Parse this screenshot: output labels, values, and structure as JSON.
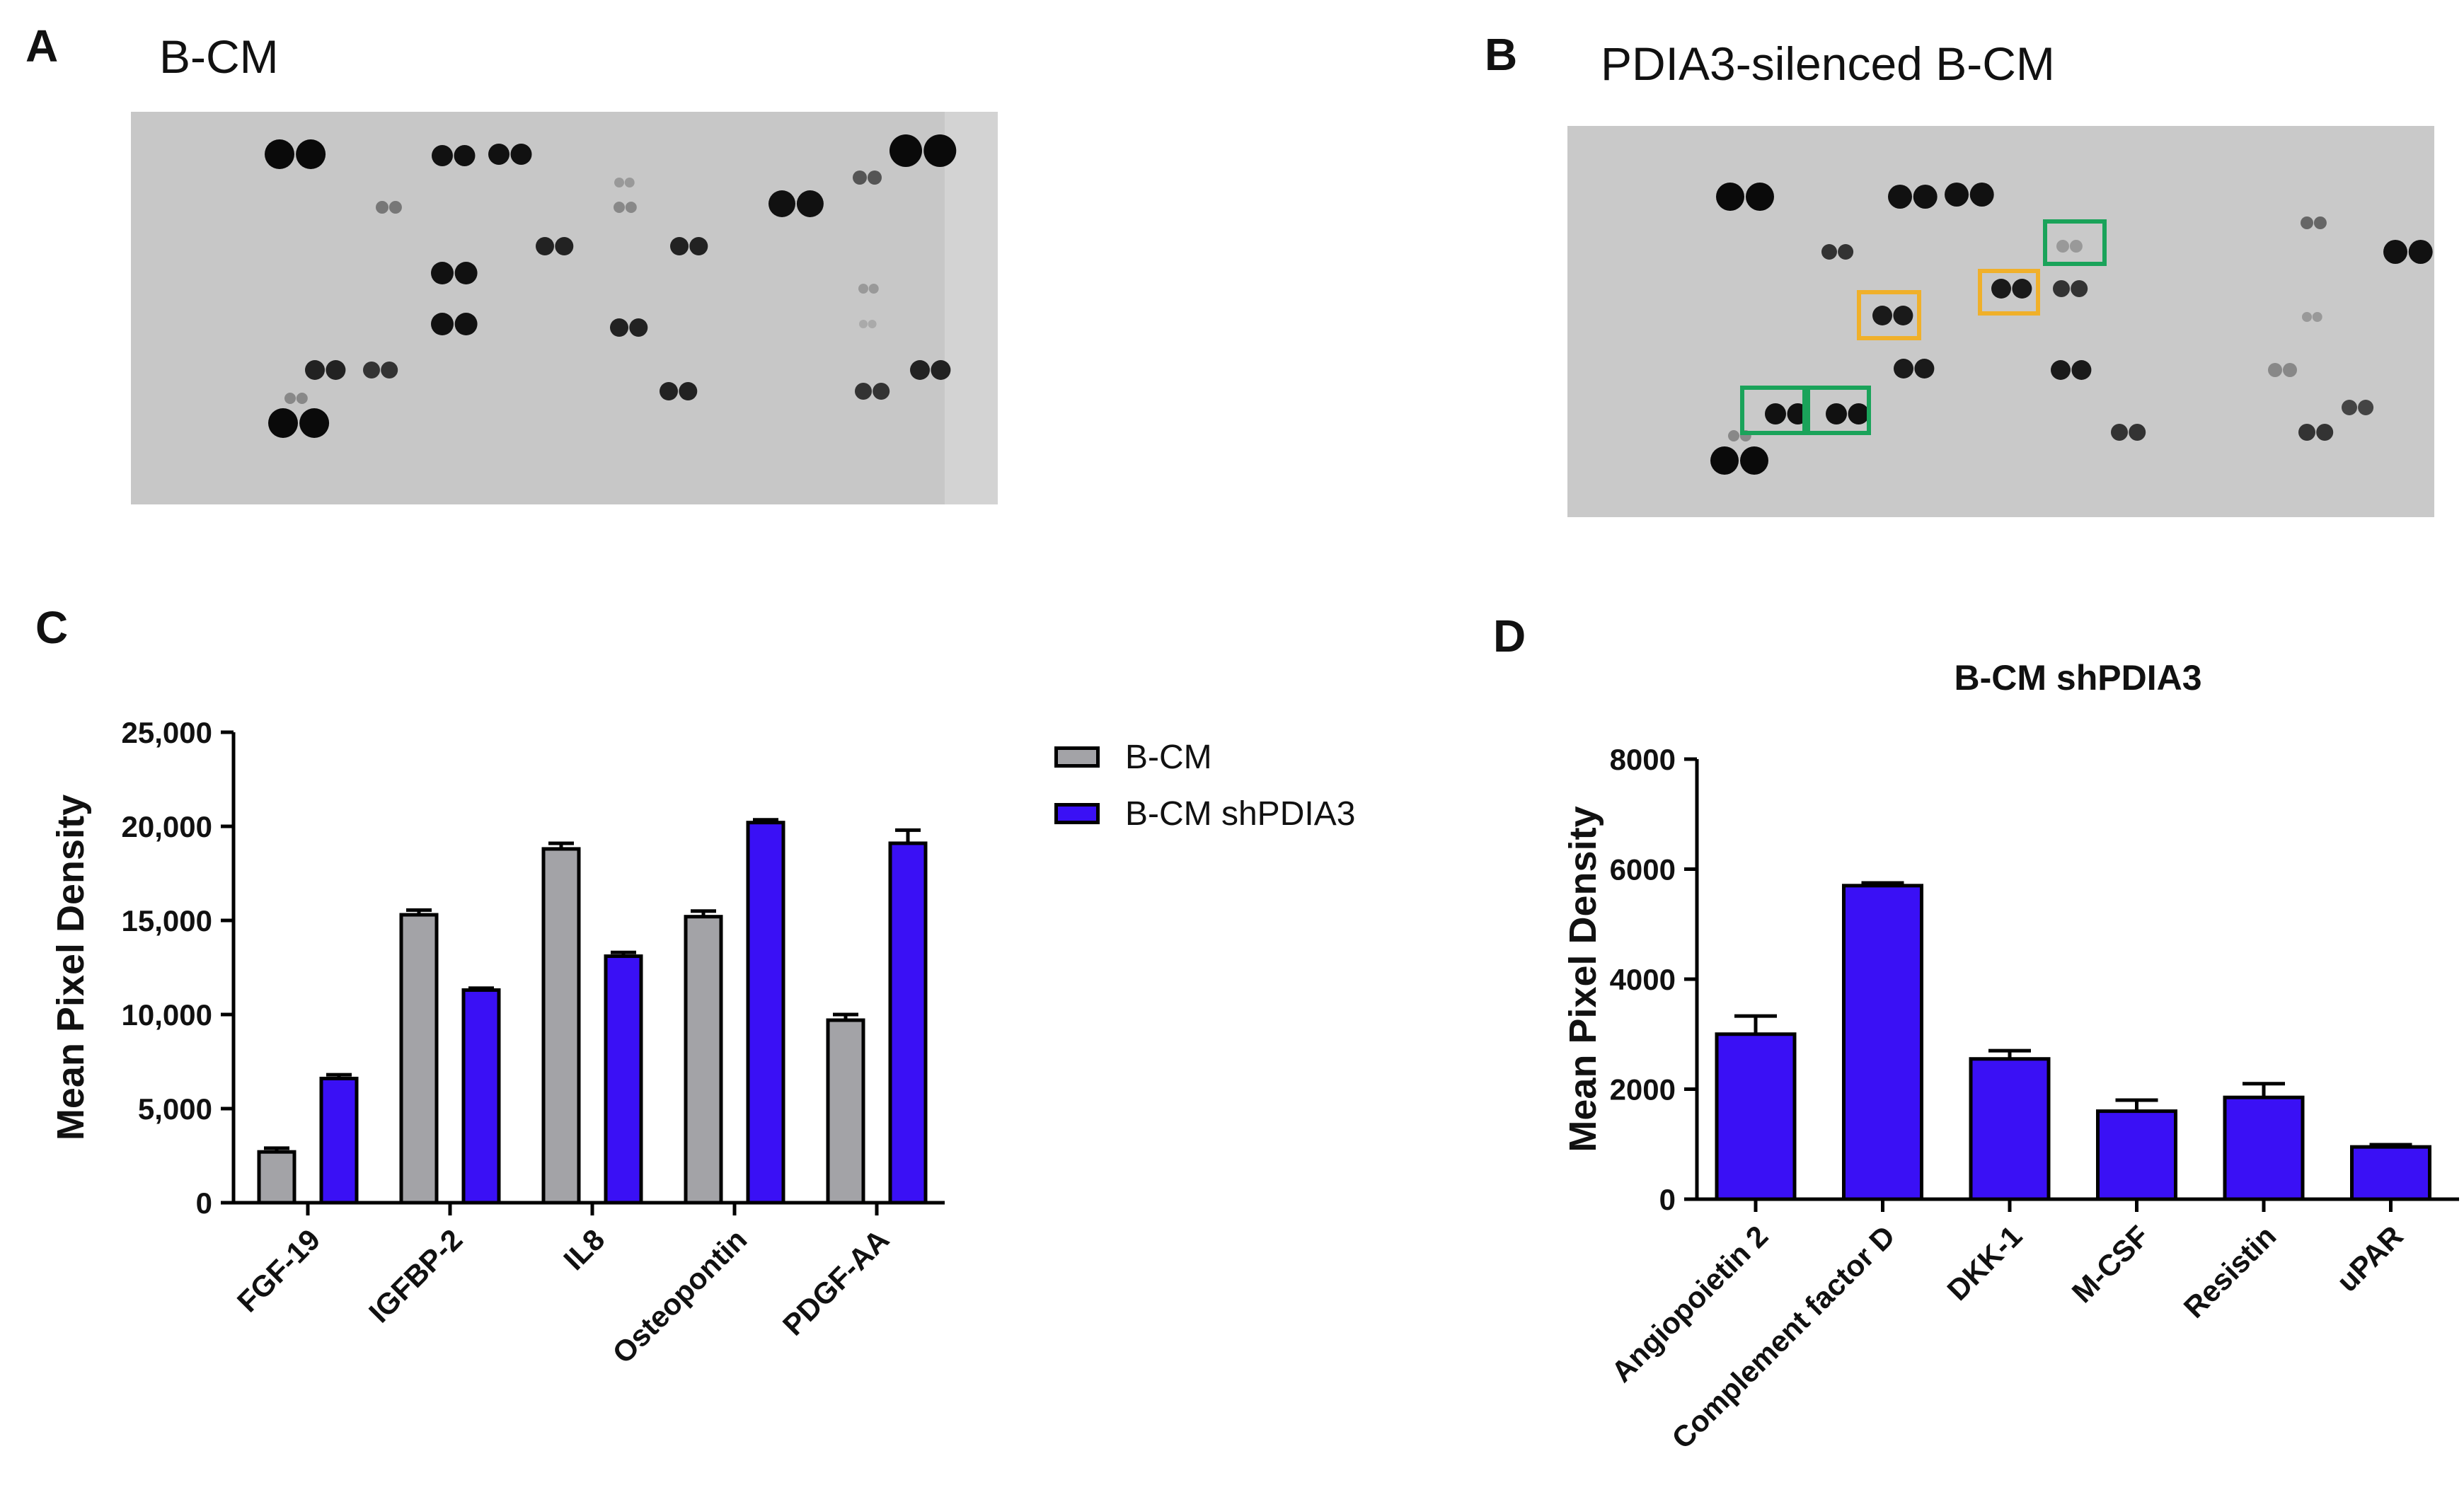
{
  "panels": {
    "a": {
      "letter": "A",
      "title": "B-CM"
    },
    "b": {
      "letter": "B",
      "title": "PDIA3-silenced B-CM"
    },
    "c": {
      "letter": "C"
    },
    "d": {
      "letter": "D"
    }
  },
  "colors": {
    "bcm": "#a3a3a7",
    "shpdia3": "#3a10f5",
    "highlight_green": "#1aa35a",
    "highlight_orange": "#f0b02a",
    "membrane": "#c9c9c9"
  },
  "legend": {
    "bcm": "B-CM",
    "shpdia3": "B-CM shPDIA3"
  },
  "chart_data": [
    {
      "type": "bar",
      "title": "",
      "xlabel": "",
      "ylabel": "Mean Pixel Density",
      "ylim": [
        0,
        25000
      ],
      "yticks": [
        0,
        5000,
        10000,
        15000,
        20000,
        25000
      ],
      "ytick_labels": [
        "0",
        "5,000",
        "10,000",
        "15,000",
        "20,000",
        "25,000"
      ],
      "categories": [
        "FGF-19",
        "IGFBP-2",
        "IL8",
        "Osteopontin",
        "PDGF-AA"
      ],
      "series": [
        {
          "name": "B-CM",
          "values": [
            2700,
            15300,
            18800,
            15200,
            9700
          ],
          "errors": [
            200,
            250,
            300,
            300,
            300
          ]
        },
        {
          "name": "B-CM shPDIA3",
          "values": [
            6600,
            11300,
            13100,
            20200,
            19100
          ],
          "errors": [
            200,
            100,
            200,
            150,
            700
          ]
        }
      ],
      "legend_position": "right"
    },
    {
      "type": "bar",
      "title": "B-CM shPDIA3",
      "xlabel": "",
      "ylabel": "Mean Pixel Density",
      "ylim": [
        0,
        8000
      ],
      "yticks": [
        0,
        2000,
        4000,
        6000,
        8000
      ],
      "ytick_labels": [
        "0",
        "2000",
        "4000",
        "6000",
        "8000"
      ],
      "categories": [
        "Angiopoietin 2",
        "Complement factor D",
        "DKK-1",
        "M-CSF",
        "Resistin",
        "uPAR"
      ],
      "series": [
        {
          "name": "B-CM shPDIA3",
          "values": [
            3000,
            5700,
            2550,
            1600,
            1850,
            950
          ],
          "errors": [
            330,
            50,
            150,
            200,
            250,
            40
          ]
        }
      ]
    }
  ]
}
